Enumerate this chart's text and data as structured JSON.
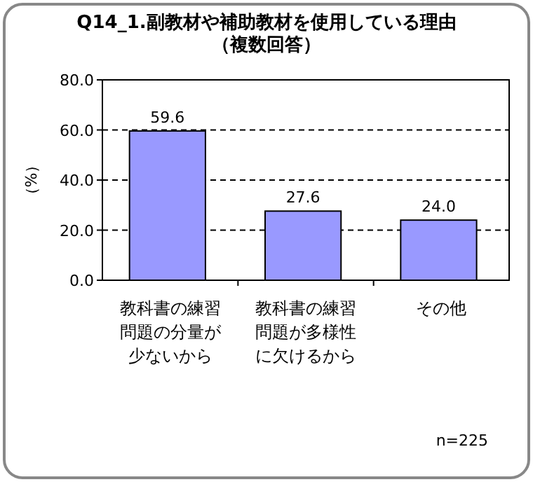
{
  "chart_data": {
    "type": "bar",
    "title": "Q14_1.副教材や補助教材を使用している理由",
    "subtitle": "（複数回答）",
    "ylabel": "（%）",
    "categories": [
      "教科書の練習問題の分量が少ないから",
      "教科書の練習問題が多様性に欠けるから",
      "その他"
    ],
    "values": [
      59.6,
      27.6,
      24.0
    ],
    "value_labels": [
      "59.6",
      "27.6",
      "24.0"
    ],
    "color": "#9999ff",
    "ylim": [
      0,
      80
    ],
    "yticks": [
      {
        "value": 0,
        "label": "0.0"
      },
      {
        "value": 20,
        "label": "20.0"
      },
      {
        "value": 40,
        "label": "40.0"
      },
      {
        "value": 60,
        "label": "60.0"
      },
      {
        "value": 80,
        "label": "80.0"
      }
    ],
    "grid": "y",
    "annotations": [
      "n=225"
    ]
  }
}
